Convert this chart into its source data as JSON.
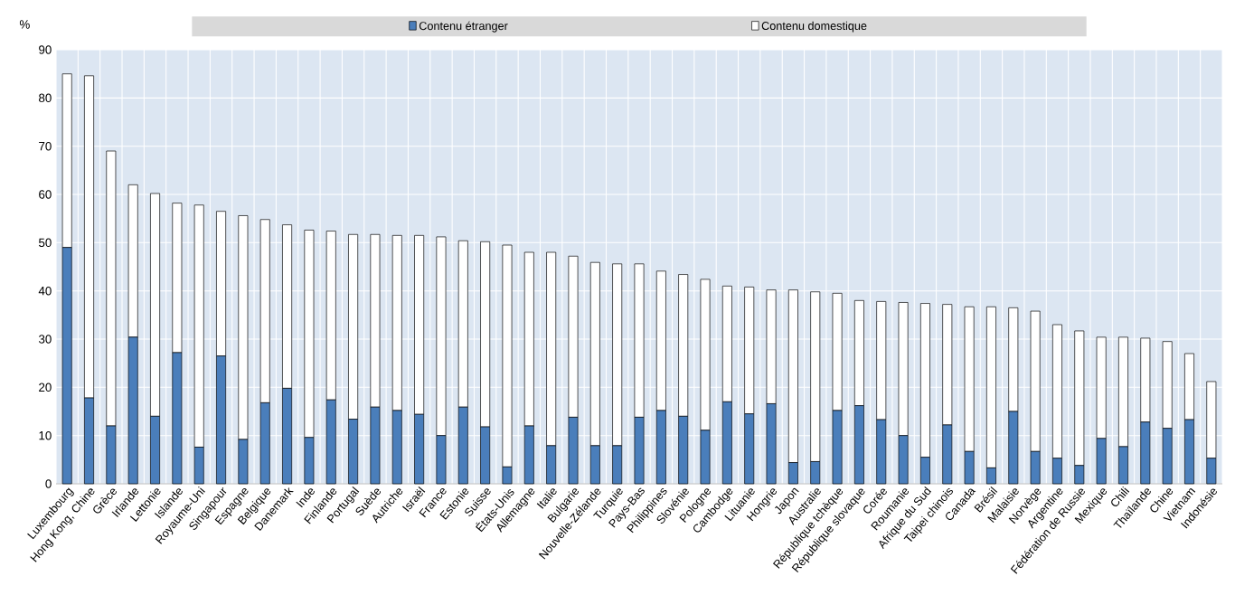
{
  "chart_data": {
    "type": "bar",
    "stacked": true,
    "ylabel": "%",
    "categories": [
      "Luxembourg",
      "Hong Kong, Chine",
      "Grèce",
      "Irlande",
      "Lettonie",
      "Islande",
      "Royaume-Uni",
      "Singapour",
      "Espagne",
      "Belgique",
      "Danemark",
      "Inde",
      "Finlande",
      "Portugal",
      "Suède",
      "Autriche",
      "Israël",
      "France",
      "Estonie",
      "Suisse",
      "États-Unis",
      "Allemagne",
      "Italie",
      "Bulgarie",
      "Nouvelle-Zélande",
      "Turquie",
      "Pays-Bas",
      "Philippines",
      "Slovénie",
      "Pologne",
      "Cambodge",
      "Lituanie",
      "Hongrie",
      "Japon",
      "Australie",
      "République tchèque",
      "République slovaque",
      "Corée",
      "Roumanie",
      "Afrique du Sud",
      "Taipei chinois",
      "Canada",
      "Brésil",
      "Malaisie",
      "Norvège",
      "Argentine",
      "Fédération de Russie",
      "Mexique",
      "Chili",
      "Thaïlande",
      "Chine",
      "Vietnam",
      "Indonésie"
    ],
    "series": [
      {
        "name": "Contenu étranger",
        "color": "#4a7ebb",
        "values": [
          49,
          17.8,
          12,
          30.4,
          14,
          27.2,
          7.6,
          26.5,
          9.2,
          16.8,
          19.8,
          9.6,
          17.4,
          13.4,
          15.9,
          15.2,
          14.4,
          10,
          15.9,
          11.8,
          3.5,
          12,
          7.9,
          13.8,
          7.9,
          7.9,
          13.8,
          15.2,
          14,
          11.1,
          17,
          14.5,
          16.6,
          4.4,
          4.6,
          15.2,
          16.2,
          13.3,
          10,
          5.5,
          12.2,
          6.7,
          3.3,
          15,
          6.7,
          5.3,
          3.8,
          9.4,
          7.7,
          12.8,
          11.5,
          13.3,
          5.3
        ]
      },
      {
        "name": "Contenu domestique",
        "color": "#ffffff",
        "values": [
          36,
          66.8,
          57,
          31.6,
          46.2,
          31,
          50.2,
          30,
          46.4,
          38,
          33.9,
          43,
          35,
          38.3,
          35.8,
          36.3,
          37.1,
          41.2,
          34.5,
          38.4,
          46,
          36,
          40.1,
          33.4,
          38,
          37.7,
          31.8,
          28.9,
          29.4,
          31.3,
          24,
          26.3,
          23.6,
          35.8,
          35.2,
          24.3,
          21.8,
          24.5,
          27.6,
          31.9,
          25,
          30,
          33.4,
          21.5,
          29.1,
          27.7,
          27.9,
          21,
          22.7,
          17.4,
          18,
          13.7,
          15.9
        ]
      }
    ],
    "ylim": [
      0,
      90
    ],
    "yticks": [
      0,
      10,
      20,
      30,
      40,
      50,
      60,
      70,
      80,
      90
    ],
    "grid": true,
    "legend": "top"
  }
}
